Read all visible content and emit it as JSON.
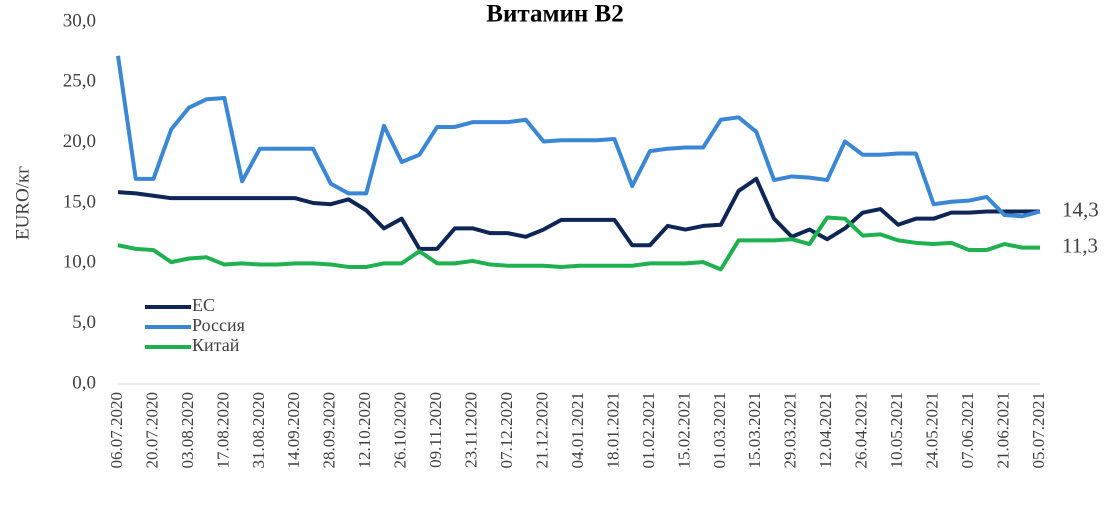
{
  "chart_data": {
    "type": "line",
    "title": "Витамин В2",
    "y_label": "EURO/кг",
    "categories": [
      "06.07.2020",
      null,
      "20.07.2020",
      null,
      "03.08.2020",
      null,
      "17.08.2020",
      null,
      "31.08.2020",
      null,
      "14.09.2020",
      null,
      "28.09.2020",
      null,
      "12.10.2020",
      null,
      "26.10.2020",
      null,
      "09.11.2020",
      null,
      "23.11.2020",
      null,
      "07.12.2020",
      null,
      "21.12.2020",
      null,
      "04.01.2021",
      null,
      "18.01.2021",
      null,
      "01.02.2021",
      null,
      "15.02.2021",
      null,
      "01.03.2021",
      null,
      "15.03.2021",
      null,
      "29.03.2021",
      null,
      "12.04.2021",
      null,
      "26.04.2021",
      null,
      "10.05.2021",
      null,
      "24.05.2021",
      null,
      "07.06.2021",
      null,
      "21.06.2021",
      null,
      "05.07.2021"
    ],
    "series": [
      {
        "name": "ЕС",
        "color": "#0d2656",
        "values": [
          15.9,
          15.8,
          15.6,
          15.4,
          15.4,
          15.4,
          15.4,
          15.4,
          15.4,
          15.4,
          15.4,
          15.0,
          14.9,
          15.3,
          14.4,
          12.9,
          13.7,
          11.2,
          11.2,
          12.9,
          12.9,
          12.5,
          12.5,
          12.2,
          12.8,
          13.6,
          13.6,
          13.6,
          13.6,
          11.5,
          11.5,
          13.1,
          12.8,
          13.1,
          13.2,
          16.0,
          17.0,
          13.7,
          12.2,
          12.8,
          12.0,
          12.9,
          14.2,
          14.5,
          13.2,
          13.7,
          13.7,
          14.2,
          14.2,
          14.3,
          14.3,
          14.3,
          14.3
        ],
        "value_labels": [
          null,
          null,
          null,
          null,
          null,
          null,
          null,
          null,
          null,
          null,
          null,
          null,
          null,
          null,
          null,
          null,
          null,
          null,
          null,
          null,
          null,
          null,
          null,
          null,
          null,
          null,
          null,
          null,
          null,
          null,
          null,
          null,
          null,
          null,
          null,
          null,
          null,
          null,
          null,
          null,
          null,
          null,
          null,
          null,
          null,
          null,
          null,
          null,
          null,
          null,
          null,
          null,
          "14,3"
        ]
      },
      {
        "name": "Россия",
        "color": "#3a87d6",
        "values": [
          27.2,
          17.0,
          17.0,
          21.1,
          22.9,
          23.6,
          23.7,
          16.8,
          19.5,
          19.5,
          19.5,
          19.5,
          16.6,
          15.8,
          15.8,
          21.4,
          18.4,
          19.0,
          21.3,
          21.3,
          21.7,
          21.7,
          21.7,
          21.9,
          20.1,
          20.2,
          20.2,
          20.2,
          20.3,
          16.4,
          19.3,
          19.5,
          19.6,
          19.6,
          21.9,
          22.1,
          20.9,
          16.9,
          17.2,
          17.1,
          16.9,
          20.1,
          19.0,
          19.0,
          19.1,
          19.1,
          14.9,
          15.1,
          15.2,
          15.5,
          14.0,
          13.9,
          14.3
        ]
      },
      {
        "name": "Китай",
        "color": "#1fb14f",
        "values": [
          11.5,
          11.2,
          11.1,
          10.1,
          10.4,
          10.5,
          9.9,
          10.0,
          9.9,
          9.9,
          10.0,
          10.0,
          9.9,
          9.7,
          9.7,
          10.0,
          10.0,
          11.0,
          10.0,
          10.0,
          10.2,
          9.9,
          9.8,
          9.8,
          9.8,
          9.7,
          9.8,
          9.8,
          9.8,
          9.8,
          10.0,
          10.0,
          10.0,
          10.1,
          9.5,
          11.9,
          11.9,
          11.9,
          12.0,
          11.6,
          13.8,
          13.7,
          12.3,
          12.4,
          11.9,
          11.7,
          11.6,
          11.7,
          11.1,
          11.1,
          11.6,
          11.3,
          11.3
        ],
        "value_labels": [
          null,
          null,
          null,
          null,
          null,
          null,
          null,
          null,
          null,
          null,
          null,
          null,
          null,
          null,
          null,
          null,
          null,
          null,
          null,
          null,
          null,
          null,
          null,
          null,
          null,
          null,
          null,
          null,
          null,
          null,
          null,
          null,
          null,
          null,
          null,
          null,
          null,
          null,
          null,
          null,
          null,
          null,
          null,
          null,
          null,
          null,
          null,
          null,
          null,
          null,
          null,
          null,
          "11,3"
        ]
      }
    ],
    "ylim": [
      0,
      30
    ],
    "yticks": [
      {
        "value": 0,
        "label": "0,0"
      },
      {
        "value": 5,
        "label": "5,0"
      },
      {
        "value": 10,
        "label": "10,0"
      },
      {
        "value": 15,
        "label": "15,0"
      },
      {
        "value": 20,
        "label": "20,0"
      },
      {
        "value": 25,
        "label": "25,0"
      },
      {
        "value": 30,
        "label": "30,0"
      }
    ],
    "grid": false,
    "legend": "lower left"
  }
}
